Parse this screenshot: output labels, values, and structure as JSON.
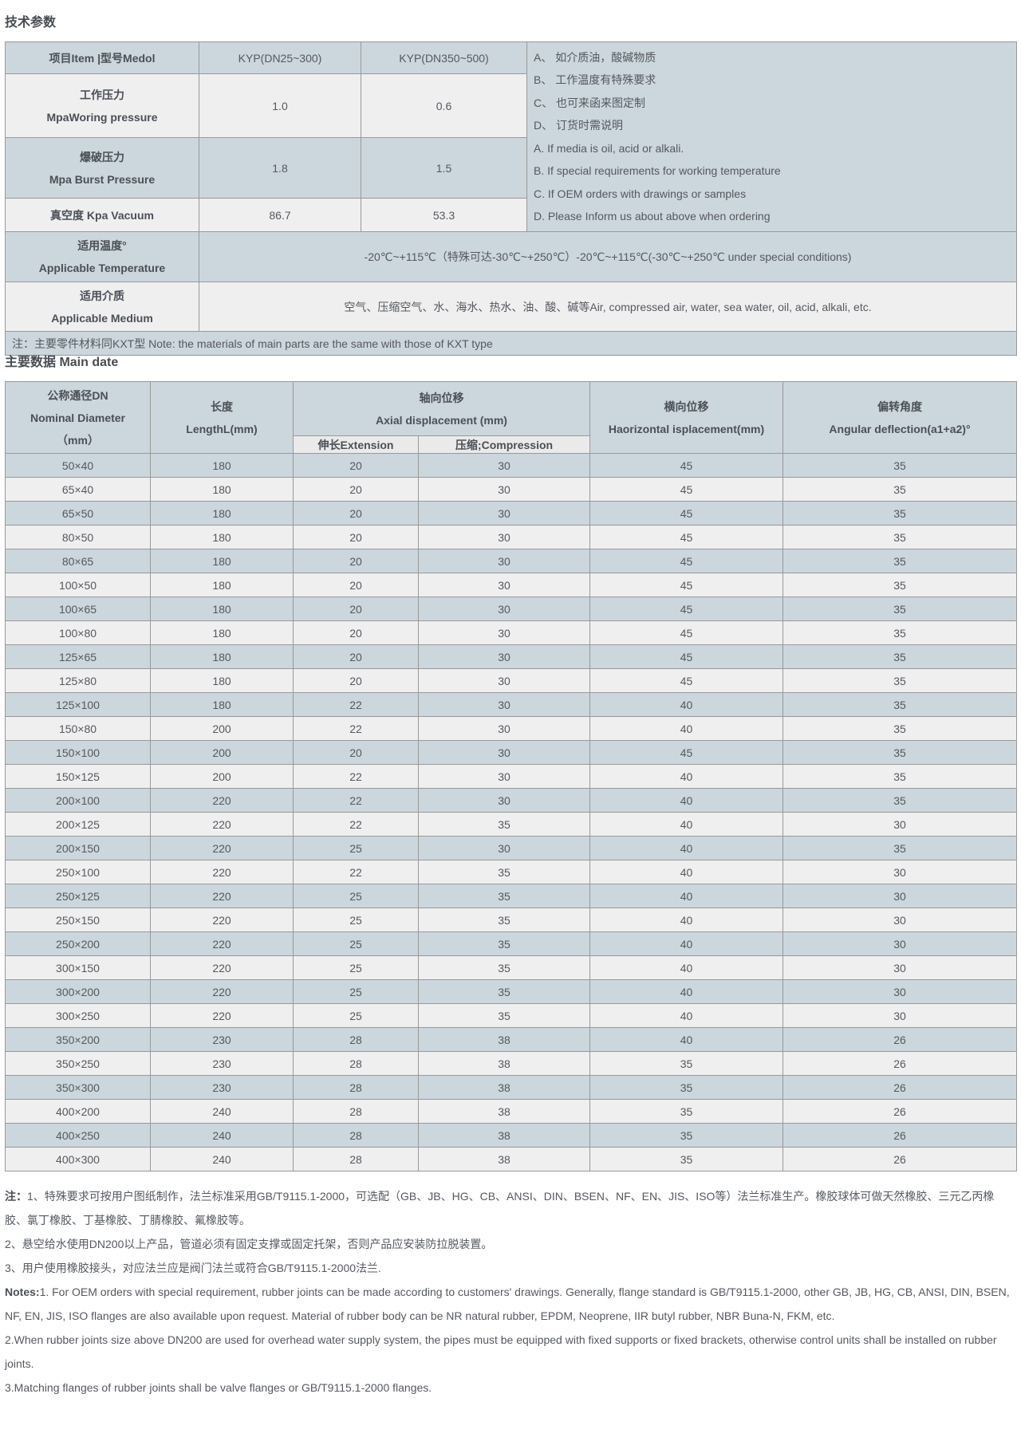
{
  "page": {
    "section1_title": "技术参数",
    "section2_title": "主要数据 Main date"
  },
  "colors": {
    "header_bg": "#ccd6dd",
    "alt_row_bg": "#efefef",
    "subheader_bg": "#eaeaea",
    "border": "#999999",
    "text": "#54595f"
  },
  "tech_table": {
    "header": {
      "item_label": "项目Item |型号Medol",
      "col1": "KYP(DN25~300)",
      "col2": "KYP(DN350~500)"
    },
    "side_notes": [
      "A、 如介质油，酸碱物质",
      "B、 工作温度有特殊要求",
      "C、 也可来函来图定制",
      "D、 订货时需说明",
      "A. If media is oil, acid or alkali.",
      "B. If special requirements for working temperature",
      "C. If OEM orders with drawings or samples",
      "D. Please Inform us about above when ordering"
    ],
    "working_row": {
      "label_cn": "工作压力",
      "label_en": "MpaWoring pressure",
      "v1": "1.0",
      "v2": "0.6"
    },
    "burst_row": {
      "label_cn": "爆破压力",
      "label_en": "Mpa Burst Pressure",
      "v1": "1.8",
      "v2": "1.5"
    },
    "vacuum_row": {
      "label": "真空度 Kpa Vacuum",
      "v1": "86.7",
      "v2": "53.3"
    },
    "temp_row": {
      "label_cn": "适用温度°",
      "label_en": "Applicable Temperature",
      "value": "-20℃~+115℃（特殊可达-30℃~+250℃）-20℃~+115℃(-30℃~+250℃ under special conditions)"
    },
    "medium_row": {
      "label_cn": "适用介质",
      "label_en": "Applicable Medium",
      "value": "空气、压缩空气、水、海水、热水、油、酸、碱等Air, compressed air, water, sea water, oil, acid, alkali, etc."
    },
    "footnote": "注：主要零件材料同KXT型 Note: the materials of main parts are the same with those of KXT type"
  },
  "main_table": {
    "headers": {
      "dn_cn": "公称通径DN",
      "dn_en": "Nominal Diameter",
      "dn_unit": "（mm）",
      "length_cn": "长度",
      "length_en": "LengthL(mm)",
      "axial_cn": "轴向位移",
      "axial_en": "Axial displacement (mm)",
      "extension": "伸长Extension",
      "compression": "压缩;Compression",
      "horizontal_cn": "横向位移",
      "horizontal_en": "Haorizontal isplacement(mm)",
      "angular_cn": "偏转角度",
      "angular_en": "Angular deflection(a1+a2)°"
    },
    "rows": [
      [
        "50×40",
        "180",
        "20",
        "30",
        "45",
        "35"
      ],
      [
        "65×40",
        "180",
        "20",
        "30",
        "45",
        "35"
      ],
      [
        "65×50",
        "180",
        "20",
        "30",
        "45",
        "35"
      ],
      [
        "80×50",
        "180",
        "20",
        "30",
        "45",
        "35"
      ],
      [
        "80×65",
        "180",
        "20",
        "30",
        "45",
        "35"
      ],
      [
        "100×50",
        "180",
        "20",
        "30",
        "45",
        "35"
      ],
      [
        "100×65",
        "180",
        "20",
        "30",
        "45",
        "35"
      ],
      [
        "100×80",
        "180",
        "20",
        "30",
        "45",
        "35"
      ],
      [
        "125×65",
        "180",
        "20",
        "30",
        "45",
        "35"
      ],
      [
        "125×80",
        "180",
        "20",
        "30",
        "45",
        "35"
      ],
      [
        "125×100",
        "180",
        "22",
        "30",
        "40",
        "35"
      ],
      [
        "150×80",
        "200",
        "22",
        "30",
        "40",
        "35"
      ],
      [
        "150×100",
        "200",
        "20",
        "30",
        "45",
        "35"
      ],
      [
        "150×125",
        "200",
        "22",
        "30",
        "40",
        "35"
      ],
      [
        "200×100",
        "220",
        "22",
        "30",
        "40",
        "35"
      ],
      [
        "200×125",
        "220",
        "22",
        "35",
        "40",
        "30"
      ],
      [
        "200×150",
        "220",
        "25",
        "30",
        "40",
        "35"
      ],
      [
        "250×100",
        "220",
        "22",
        "35",
        "40",
        "30"
      ],
      [
        "250×125",
        "220",
        "25",
        "35",
        "40",
        "30"
      ],
      [
        "250×150",
        "220",
        "25",
        "35",
        "40",
        "30"
      ],
      [
        "250×200",
        "220",
        "25",
        "35",
        "40",
        "30"
      ],
      [
        "300×150",
        "220",
        "25",
        "35",
        "40",
        "30"
      ],
      [
        "300×200",
        "220",
        "25",
        "35",
        "40",
        "30"
      ],
      [
        "300×250",
        "220",
        "25",
        "35",
        "40",
        "30"
      ],
      [
        "350×200",
        "230",
        "28",
        "38",
        "40",
        "26"
      ],
      [
        "350×250",
        "230",
        "28",
        "38",
        "35",
        "26"
      ],
      [
        "350×300",
        "230",
        "28",
        "38",
        "35",
        "26"
      ],
      [
        "400×200",
        "240",
        "28",
        "38",
        "35",
        "26"
      ],
      [
        "400×250",
        "240",
        "28",
        "38",
        "35",
        "26"
      ],
      [
        "400×300",
        "240",
        "28",
        "38",
        "35",
        "26"
      ]
    ]
  },
  "bottom_notes": {
    "cn_prefix": "注：",
    "cn_lines": [
      "1、特殊要求可按用户图纸制作，法兰标准采用GB/T9115.1-2000，可选配（GB、JB、HG、CB、ANSI、DIN、BSEN、NF、EN、JIS、ISO等）法兰标准生产。橡胶球体可做天然橡胶、三元乙丙橡胶、氯丁橡胶、丁基橡胶、丁腈橡胶、氟橡胶等。",
      "2、悬空给水使用DN200以上产品，管道必须有固定支撑或固定托架，否则产品应安装防拉脱装置。",
      "3、用户使用橡胶接头，对应法兰应是阀门法兰或符合GB/T9115.1-2000法兰."
    ],
    "en_prefix": "Notes:",
    "en_lines": [
      "1. For OEM orders with special requirement, rubber joints can be made according to customers' drawings. Generally, flange standard is GB/T9115.1-2000, other GB, JB, HG, CB, ANSI, DIN, BSEN, NF, EN, JIS, ISO flanges are also available upon request. Material of rubber body can be NR natural rubber, EPDM, Neoprene, IIR butyl rubber, NBR Buna-N, FKM, etc.",
      "2.When rubber joints size above DN200 are used for overhead water supply system, the pipes must be equipped with fixed supports or fixed brackets, otherwise control units shall be installed on rubber joints.",
      "3.Matching flanges of rubber joints shall be valve flanges or GB/T9115.1-2000 flanges."
    ]
  }
}
